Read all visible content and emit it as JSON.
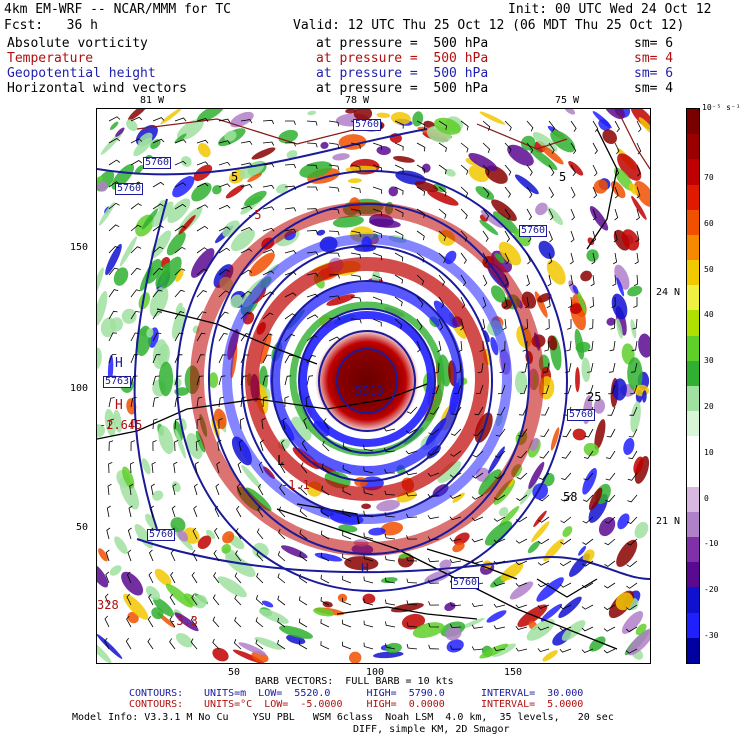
{
  "header": {
    "model": "4km EM-WRF -- NCAR/MMM for TC",
    "init": "Init: 00 UTC Wed 24 Oct 12",
    "fcst": "Fcst:   36 h",
    "valid": "Valid: 12 UTC Thu 25 Oct 12 (06 MDT Thu 25 Oct 12)"
  },
  "fields": [
    {
      "name": "Absolute vorticity",
      "at": "at pressure =  500 hPa",
      "sm": "sm= 6",
      "color": "#000000"
    },
    {
      "name": "Temperature",
      "at": "at pressure =  500 hPa",
      "sm": "sm= 4",
      "color": "#b01010"
    },
    {
      "name": "Geopotential height",
      "at": "at pressure =  500 hPa",
      "sm": "sm= 6",
      "color": "#1f1fb0"
    },
    {
      "name": "Horizontal wind vectors",
      "at": "at pressure =  500 hPa",
      "sm": "sm= 4",
      "color": "#000000"
    }
  ],
  "axes": {
    "lon_labels": [
      "81 W",
      "78 W",
      "75 W"
    ],
    "lat_labels": [
      "24 N",
      "21 N"
    ],
    "x_ticks": [
      "50",
      "100",
      "150"
    ],
    "y_ticks": [
      "150",
      "100",
      "50"
    ]
  },
  "map_labels": {
    "height_contours": [
      "5760",
      "5760",
      "5760",
      "5760",
      "5760",
      "5760",
      "5760"
    ],
    "height_center": "5513",
    "high_marks": [
      "H",
      "H",
      "H"
    ],
    "low_mark": "L",
    "height_value": "5763",
    "temp_values": [
      "-2.645",
      "-3.3",
      "-1.1",
      "-5"
    ],
    "vort_labels": [
      "5",
      "5",
      "58",
      "25"
    ],
    "edge_value": "328"
  },
  "colorbar": {
    "units": "10⁻⁵ s⁻¹",
    "tick_labels": [
      "70",
      "60",
      "50",
      "40",
      "30",
      "20",
      "10",
      "0",
      "-10",
      "-20",
      "-30"
    ],
    "colors": [
      "#7a0000",
      "#9a0000",
      "#c00000",
      "#e01a00",
      "#f05000",
      "#f58a00",
      "#f2c800",
      "#f0f040",
      "#b0e000",
      "#5fcf2a",
      "#30b030",
      "#a0e0a0",
      "#d8f5d8",
      "#ffffff",
      "#ffffff",
      "#d8b8e0",
      "#b080c8",
      "#8030a8",
      "#5a0a90",
      "#1010d0",
      "#2020ff",
      "#0000a0"
    ]
  },
  "footer": {
    "barb": "BARB VECTORS:  FULL BARB = 10 kts",
    "contours1_label": "CONTOURS:",
    "contours1": "UNITS=m  LOW=  5520.0      HIGH=  5790.0      INTERVAL=  30.000",
    "contours2_label": "CONTOURS:",
    "contours2": "UNITS=°C  LOW=  -5.0000    HIGH=  0.0000      INTERVAL=  5.0000",
    "model_info": "Model Info: V3.3.1 M No Cu    YSU PBL   WSM 6class  Noah LSM  4.0 km,  35 levels,   20 sec",
    "model_info2": "DIFF, simple KM, 2D Smagor"
  }
}
